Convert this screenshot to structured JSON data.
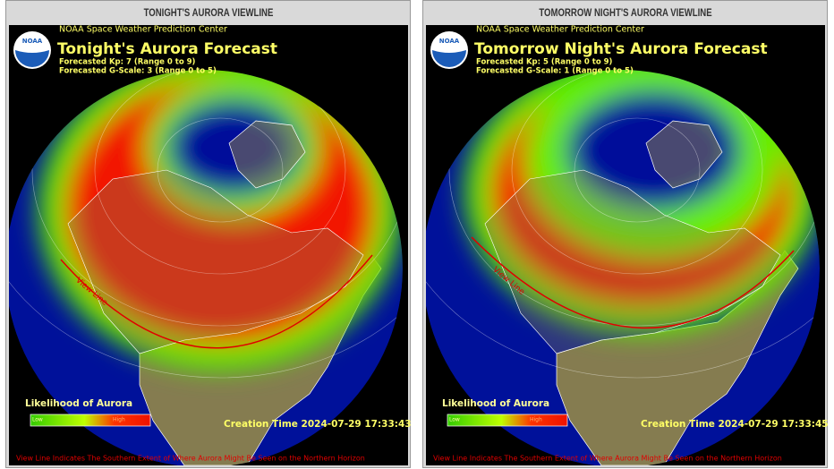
{
  "panels": [
    {
      "header": "TONIGHT'S AURORA VIEWLINE",
      "logo": "NOAA",
      "agency": "NOAA Space Weather Prediction Center",
      "title": "Tonight's Aurora Forecast",
      "kp": "Forecasted Kp: 7 (Range 0 to 9)",
      "gscale": "Forecasted G-Scale: 3 (Range 0 to 5)",
      "view_line_label": "View Line",
      "legend_title": "Likelihood of Aurora",
      "legend_low": "Low",
      "legend_high": "High",
      "creation_time": "Creation Time 2024-07-29 17:33:43",
      "footer": "View Line Indicates The Southern Extent of Where Aurora Might Be Seen on the Northern Horizon"
    },
    {
      "header": "TOMORROW NIGHT'S AURORA VIEWLINE",
      "logo": "NOAA",
      "agency": "NOAA Space Weather Prediction Center",
      "title": "Tomorrow Night's Aurora Forecast",
      "kp": "Forecasted Kp: 5 (Range 0 to 9)",
      "gscale": "Forecasted G-Scale: 1 (Range 0 to 5)",
      "view_line_label": "View Line",
      "legend_title": "Likelihood of Aurora",
      "legend_low": "Low",
      "legend_high": "High",
      "creation_time": "Creation Time 2024-07-29 17:33:45",
      "footer": "View Line Indicates The Southern Extent of Where Aurora Might Be Seen on the Northern Horizon"
    }
  ]
}
